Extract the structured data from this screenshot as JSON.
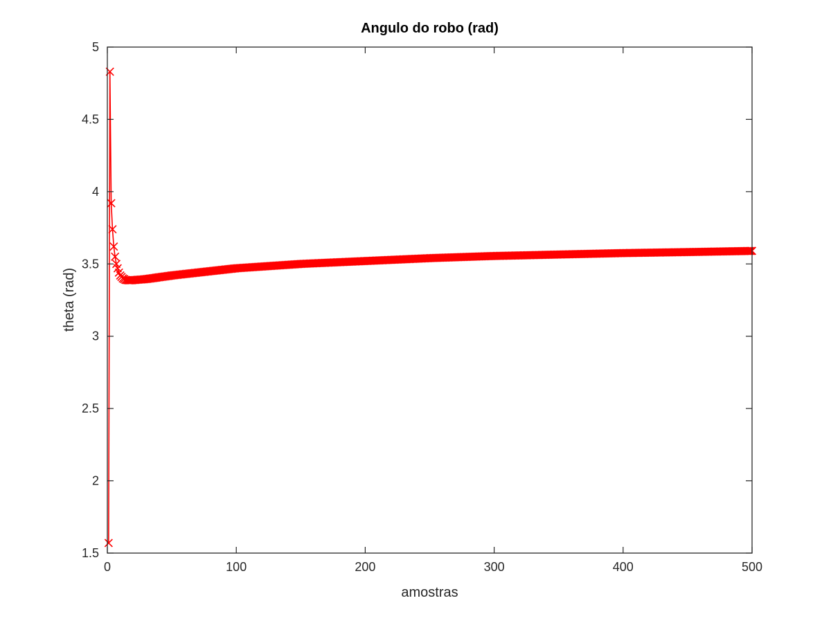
{
  "chart_data": {
    "type": "line",
    "title": "Angulo do robo (rad)",
    "xlabel": "amostras",
    "ylabel": "theta (rad)",
    "xlim": [
      0,
      500
    ],
    "ylim": [
      1.5,
      5
    ],
    "xticks": [
      0,
      100,
      200,
      300,
      400,
      500
    ],
    "yticks": [
      1.5,
      2,
      2.5,
      3,
      3.5,
      4,
      4.5,
      5
    ],
    "xtick_labels": [
      "0",
      "100",
      "200",
      "300",
      "400",
      "500"
    ],
    "ytick_labels": [
      "1.5",
      "2",
      "2.5",
      "3",
      "3.5",
      "4",
      "4.5",
      "5"
    ],
    "grid": false,
    "marker": "x",
    "series": [
      {
        "color": "#ff0000",
        "initial_points": [
          [
            1,
            1.57
          ],
          [
            2,
            4.83
          ],
          [
            3,
            3.92
          ],
          [
            4,
            3.74
          ],
          [
            5,
            3.62
          ],
          [
            6,
            3.55
          ],
          [
            7,
            3.5
          ],
          [
            8,
            3.47
          ],
          [
            9,
            3.44
          ],
          [
            10,
            3.42
          ],
          [
            11,
            3.41
          ],
          [
            12,
            3.4
          ],
          [
            13,
            3.395
          ],
          [
            14,
            3.39
          ],
          [
            15,
            3.388
          ],
          [
            16,
            3.387
          ],
          [
            17,
            3.386
          ],
          [
            18,
            3.386
          ],
          [
            19,
            3.387
          ],
          [
            20,
            3.388
          ]
        ],
        "tail_points": [
          [
            30,
            3.395
          ],
          [
            50,
            3.42
          ],
          [
            100,
            3.47
          ],
          [
            150,
            3.5
          ],
          [
            200,
            3.52
          ],
          [
            250,
            3.54
          ],
          [
            300,
            3.555
          ],
          [
            350,
            3.565
          ],
          [
            400,
            3.575
          ],
          [
            450,
            3.582
          ],
          [
            500,
            3.59
          ]
        ]
      }
    ]
  }
}
